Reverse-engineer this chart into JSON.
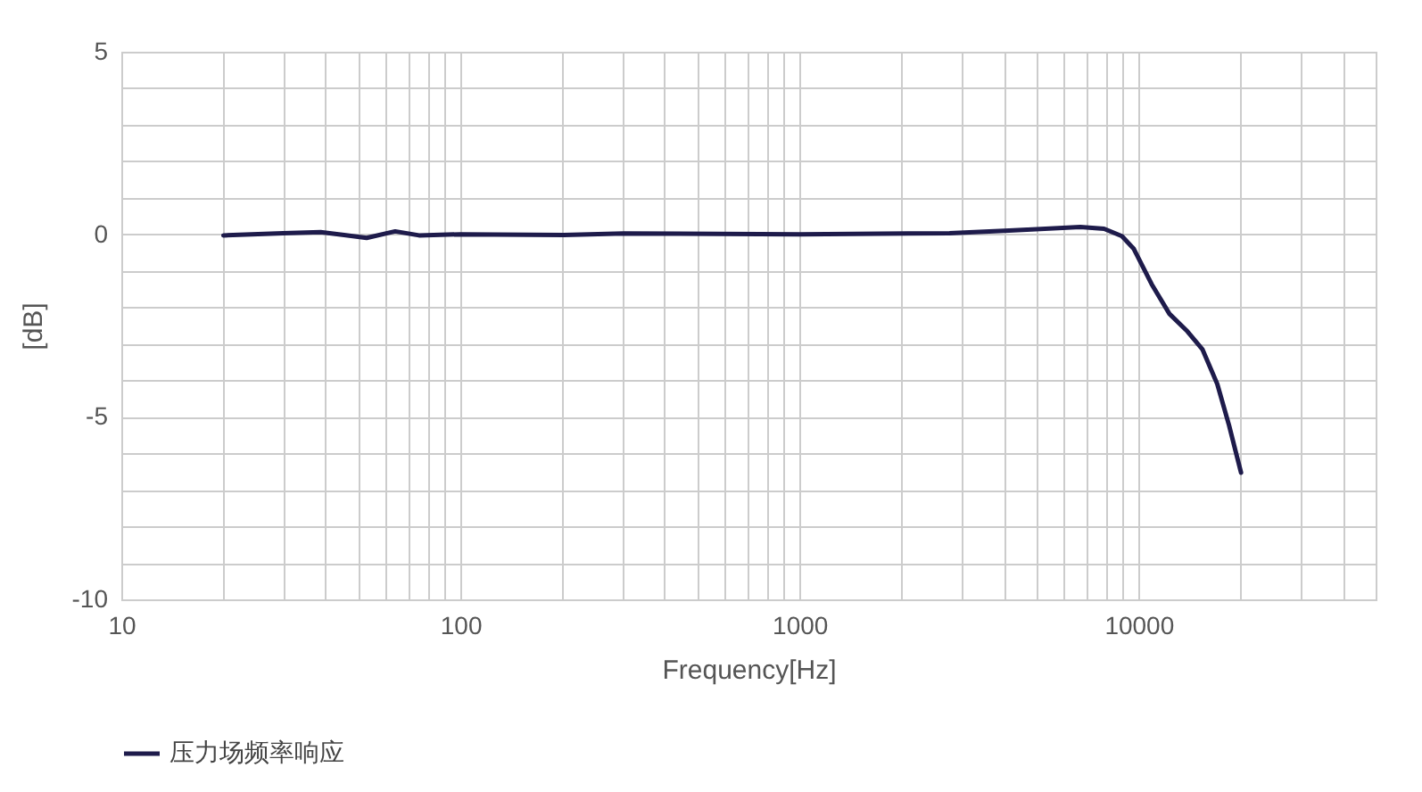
{
  "chart_data": {
    "type": "line",
    "xlabel": "Frequency[Hz]",
    "ylabel": "[dB]",
    "log": "x",
    "grid": true,
    "legend": "bottom",
    "xlim": [
      10,
      50000
    ],
    "ylim": [
      -10,
      5
    ],
    "xticks": [
      10,
      {
        "value": 20,
        "label": null
      },
      {
        "value": 30,
        "label": null
      },
      {
        "value": 40,
        "label": null
      },
      {
        "value": 50,
        "label": null
      },
      {
        "value": 60,
        "label": null
      },
      {
        "value": 70,
        "label": null
      },
      {
        "value": 80,
        "label": null
      },
      {
        "value": 90,
        "label": null
      },
      100,
      {
        "value": 200,
        "label": null
      },
      {
        "value": 300,
        "label": null
      },
      {
        "value": 400,
        "label": null
      },
      {
        "value": 500,
        "label": null
      },
      {
        "value": 600,
        "label": null
      },
      {
        "value": 700,
        "label": null
      },
      {
        "value": 800,
        "label": null
      },
      {
        "value": 900,
        "label": null
      },
      1000,
      {
        "value": 2000,
        "label": null
      },
      {
        "value": 3000,
        "label": null
      },
      {
        "value": 4000,
        "label": null
      },
      {
        "value": 5000,
        "label": null
      },
      {
        "value": 6000,
        "label": null
      },
      {
        "value": 7000,
        "label": null
      },
      {
        "value": 8000,
        "label": null
      },
      {
        "value": 9000,
        "label": null
      },
      10000,
      {
        "value": 20000,
        "label": null
      },
      {
        "value": 30000,
        "label": null
      },
      {
        "value": 40000,
        "label": null
      }
    ],
    "yticks": [
      -10,
      {
        "value": -9,
        "label": null
      },
      {
        "value": -8,
        "label": null
      },
      {
        "value": -7,
        "label": null
      },
      {
        "value": -6,
        "label": null
      },
      -5,
      {
        "value": -4,
        "label": null
      },
      {
        "value": -3,
        "label": null
      },
      {
        "value": -2,
        "label": null
      },
      {
        "value": -1,
        "label": null
      },
      0,
      {
        "value": 1,
        "label": null
      },
      {
        "value": 2,
        "label": null
      },
      {
        "value": 3,
        "label": null
      },
      {
        "value": 4,
        "label": null
      },
      5
    ],
    "series": [
      {
        "name": "压力场频率响应",
        "color": "#1e1b4b",
        "x": [
          20,
          30,
          38.7,
          45.4,
          52.9,
          64.2,
          75.5,
          100,
          202,
          303,
          1000,
          2770,
          4150,
          6730,
          7910,
          8930,
          9680,
          10930,
          12330,
          13930,
          15420,
          17060,
          18490,
          20050
        ],
        "values": [
          -0.03,
          0.03,
          0.06,
          -0.02,
          -0.1,
          0.08,
          -0.03,
          0,
          -0.02,
          0.02,
          0,
          0.03,
          0.1,
          0.2,
          0.15,
          -0.05,
          -0.4,
          -1.37,
          -2.18,
          -2.66,
          -3.15,
          -4.1,
          -5.24,
          -6.53
        ]
      }
    ]
  }
}
